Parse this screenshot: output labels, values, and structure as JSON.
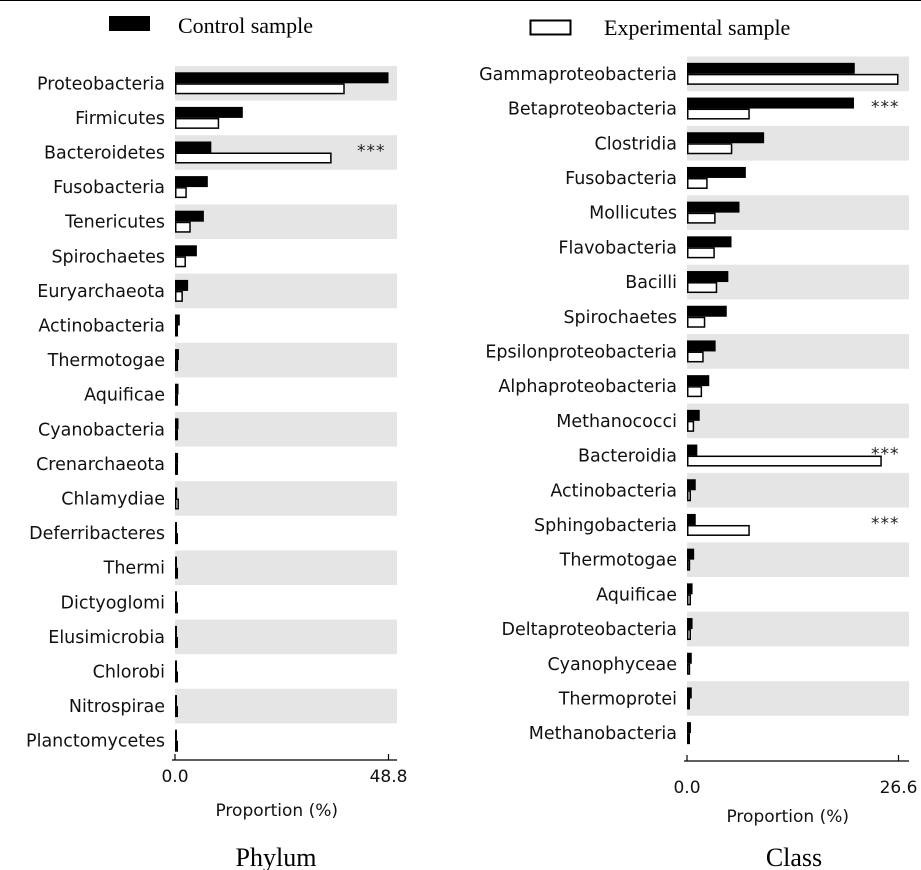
{
  "legend": {
    "control_label": "Control sample",
    "experimental_label": "Experimental sample",
    "colors": {
      "control": "#000000",
      "experimental": "#ffffff",
      "stripe": "#e5e5e5"
    },
    "placement": "top"
  },
  "chart_data": [
    {
      "type": "bar",
      "orientation": "horizontal",
      "title": "Phylum",
      "xlabel": "Proportion (%)",
      "xlim": [
        0.0,
        48.8
      ],
      "xticks": [
        "0.0",
        "48.8"
      ],
      "grid": false,
      "alternating_row_shading": true,
      "categories": [
        "Proteobacteria",
        "Firmicutes",
        "Bacteroidetes",
        "Fusobacteria",
        "Tenericutes",
        "Spirochaetes",
        "Euryarchaeota",
        "Actinobacteria",
        "Thermotogae",
        "Aquificae",
        "Cyanobacteria",
        "Crenarchaeota",
        "Chlamydiae",
        "Deferribacteres",
        "Thermi",
        "Dictyoglomi",
        "Elusimicrobia",
        "Chlorobi",
        "Nitrospirae",
        "Planctomycetes"
      ],
      "series": [
        {
          "name": "Control sample",
          "values": [
            48.8,
            15.5,
            8.3,
            7.5,
            6.6,
            5.0,
            3.0,
            1.1,
            0.9,
            0.8,
            0.8,
            0.7,
            0.5,
            0.3,
            0.3,
            0.2,
            0.3,
            0.2,
            0.2,
            0.1
          ]
        },
        {
          "name": "Experimental sample",
          "values": [
            38.8,
            10.1,
            35.8,
            2.7,
            3.6,
            2.5,
            1.8,
            0.6,
            0.7,
            0.5,
            0.6,
            0.5,
            0.9,
            0.2,
            0.3,
            0.2,
            0.3,
            0.2,
            0.2,
            0.1
          ]
        }
      ],
      "annotations": [
        {
          "category": "Bacteroidetes",
          "text": "***"
        }
      ]
    },
    {
      "type": "bar",
      "orientation": "horizontal",
      "title": "Class",
      "xlabel": "Proportion (%)",
      "xlim": [
        0.0,
        26.6
      ],
      "xticks": [
        "0.0",
        "26.6"
      ],
      "grid": false,
      "alternating_row_shading": true,
      "categories": [
        "Gammaproteobacteria",
        "Betaproteobacteria",
        "Clostridia",
        "Fusobacteria",
        "Mollicutes",
        "Flavobacteria",
        "Bacilli",
        "Spirochaetes",
        "Epsilonproteobacteria",
        "Alphaproteobacteria",
        "Methanococci",
        "Bacteroidia",
        "Actinobacteria",
        "Sphingobacteria",
        "Thermotogae",
        "Aquificae",
        "Deltaproteobacteria",
        "Cyanophyceae",
        "Thermoprotei",
        "Methanobacteria"
      ],
      "series": [
        {
          "name": "Control sample",
          "values": [
            21.1,
            21.0,
            9.7,
            7.4,
            6.6,
            5.6,
            5.2,
            5.0,
            3.6,
            2.8,
            1.6,
            1.3,
            1.1,
            1.1,
            0.9,
            0.7,
            0.7,
            0.6,
            0.6,
            0.5
          ]
        },
        {
          "name": "Experimental sample",
          "values": [
            26.6,
            7.9,
            5.7,
            2.6,
            3.6,
            3.5,
            3.8,
            2.3,
            2.1,
            1.9,
            0.9,
            24.5,
            0.5,
            7.9,
            0.4,
            0.5,
            0.5,
            0.4,
            0.3,
            0.3
          ]
        }
      ],
      "annotations": [
        {
          "category": "Betaproteobacteria",
          "text": "***"
        },
        {
          "category": "Bacteroidia",
          "text": "***"
        },
        {
          "category": "Sphingobacteria",
          "text": "***"
        }
      ]
    }
  ]
}
